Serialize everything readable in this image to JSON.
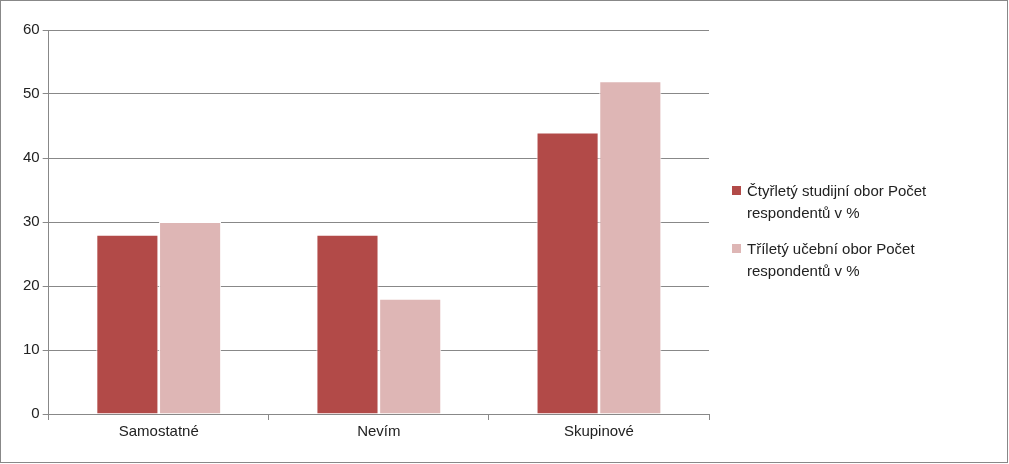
{
  "chart_data": {
    "type": "bar",
    "categories": [
      "Samostatné",
      "Nevím",
      "Skupinové"
    ],
    "series": [
      {
        "name": "Čtyřletý studijní obor Počet respondentů v %",
        "color": "#b24a48",
        "values": [
          28,
          28,
          44
        ]
      },
      {
        "name": "Tříletý učební obor Počet respondentů v %",
        "color": "#deb6b5",
        "values": [
          30,
          18,
          52
        ]
      }
    ],
    "ylim": [
      0,
      60
    ],
    "yticks": [
      0,
      10,
      20,
      30,
      40,
      50,
      60
    ],
    "grid": "y",
    "legend": "right"
  }
}
